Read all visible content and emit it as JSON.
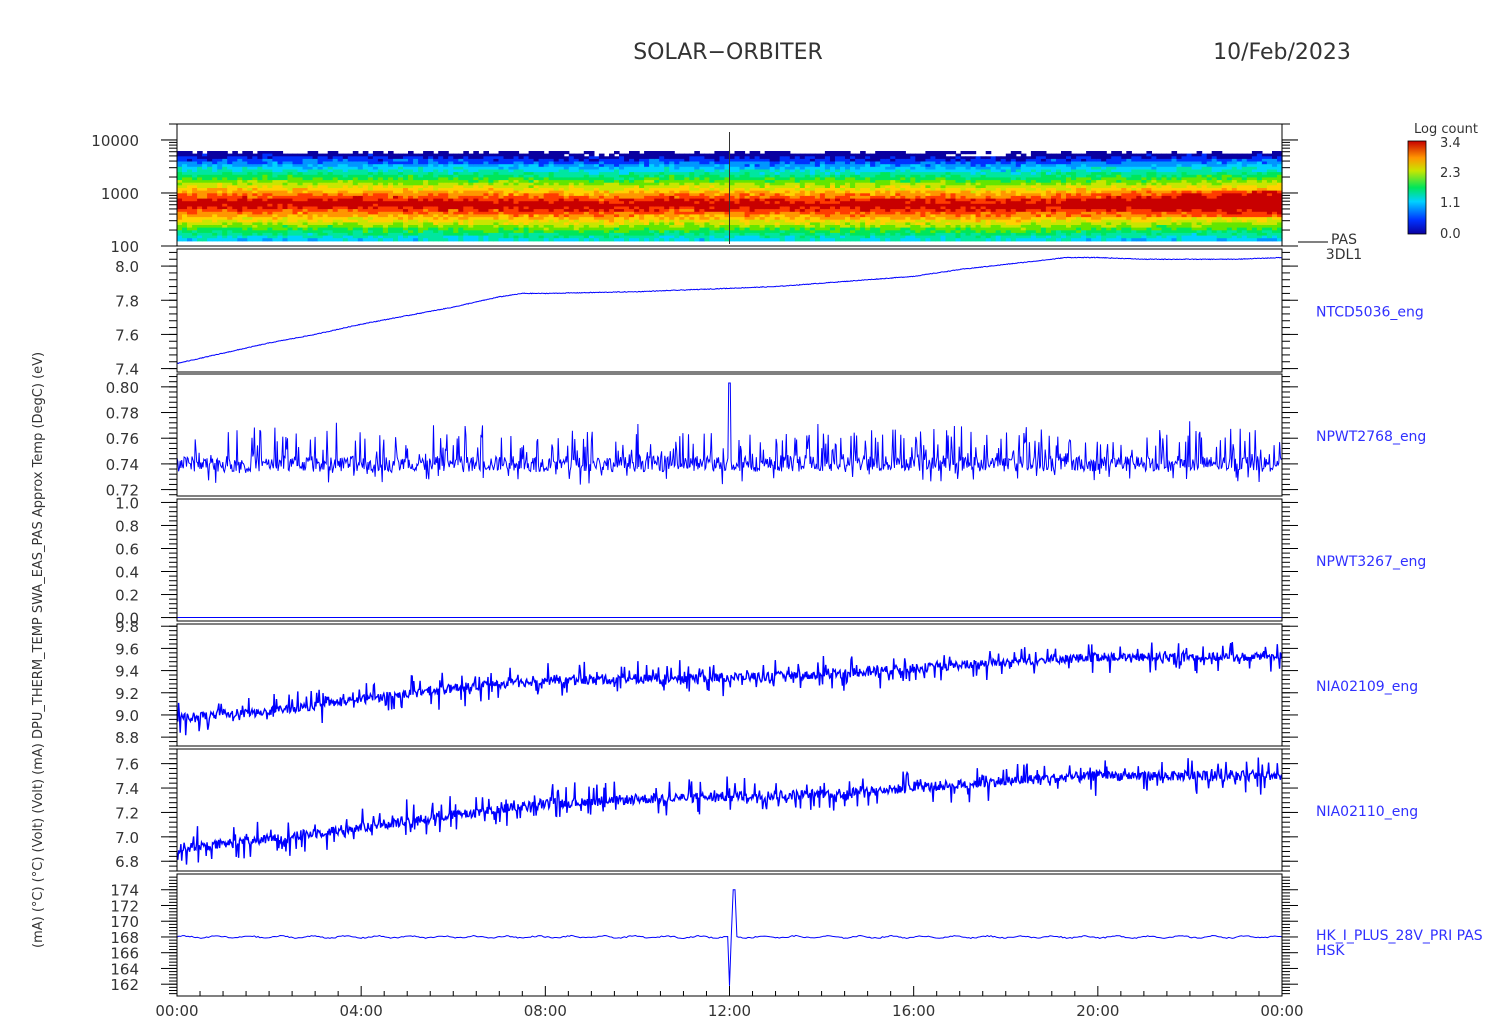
{
  "header": {
    "mission": "SOLAR−ORBITER",
    "date": "10/Feb/2023"
  },
  "colorbar": {
    "title": "Log count",
    "ticks": [
      "3.4",
      "2.3",
      "1.1",
      "0.0"
    ]
  },
  "left_axis_label_overlap": "(mA)  (°C)  (°C)  (Volt)  (Volt)  (mA)   DPU_THERM_TEMP  SWA_EAS_PAS  Approx  Temp (DegC)  (eV)",
  "x_axis": {
    "ticks": [
      "00:00",
      "04:00",
      "08:00",
      "12:00",
      "16:00",
      "20:00",
      "00:00"
    ]
  },
  "chart_data": [
    {
      "type": "heatmap",
      "name": "PAS 3DL1",
      "label_lines": [
        "PAS",
        "3DL1"
      ],
      "ylabel": "(eV)",
      "yscale": "log",
      "ylim": [
        100,
        20000
      ],
      "ytick_labels": [
        "10000",
        "1000",
        "100"
      ],
      "ytick_values": [
        10000,
        1000,
        100
      ],
      "color_range": [
        0.0,
        3.4
      ],
      "band_center_ev": [
        [
          0,
          620
        ],
        [
          2,
          640
        ],
        [
          4,
          630
        ],
        [
          6,
          610
        ],
        [
          8,
          590
        ],
        [
          9.5,
          560
        ],
        [
          10.5,
          620
        ],
        [
          12,
          600
        ],
        [
          14,
          590
        ],
        [
          16,
          600
        ],
        [
          17,
          580
        ],
        [
          18,
          560
        ],
        [
          19,
          600
        ],
        [
          20,
          620
        ],
        [
          22,
          640
        ],
        [
          24,
          650
        ]
      ]
    },
    {
      "type": "line",
      "series_label": "NTCD5036_eng",
      "ylim": [
        7.38,
        8.1
      ],
      "ytick_labels": [
        "8.0",
        "7.8",
        "7.6",
        "7.4"
      ],
      "ytick_values": [
        8.0,
        7.8,
        7.6,
        7.4
      ],
      "x": [
        0,
        1,
        2,
        3,
        4,
        5,
        6,
        7,
        7.5,
        8,
        9,
        10,
        11,
        12,
        13,
        14,
        15,
        16,
        17,
        18,
        19,
        19.3,
        20,
        21,
        22,
        23,
        24
      ],
      "y": [
        7.43,
        7.49,
        7.55,
        7.6,
        7.66,
        7.71,
        7.76,
        7.82,
        7.84,
        7.84,
        7.845,
        7.85,
        7.86,
        7.87,
        7.88,
        7.9,
        7.92,
        7.94,
        7.98,
        8.01,
        8.04,
        8.05,
        8.05,
        8.04,
        8.04,
        8.04,
        8.05
      ]
    },
    {
      "type": "line",
      "series_label": "NPWT2768_eng",
      "ylim": [
        0.715,
        0.81
      ],
      "ytick_labels": [
        "0.80",
        "0.78",
        "0.76",
        "0.74",
        "0.72"
      ],
      "ytick_values": [
        0.8,
        0.78,
        0.76,
        0.74,
        0.72
      ],
      "baseline": 0.74,
      "spike": {
        "x": 12.0,
        "y": 0.803
      }
    },
    {
      "type": "line",
      "series_label": "NPWT3267_eng",
      "ylim": [
        -0.03,
        1.03
      ],
      "ytick_labels": [
        "1.0",
        "0.8",
        "0.6",
        "0.4",
        "0.2",
        "0.0"
      ],
      "ytick_values": [
        1.0,
        0.8,
        0.6,
        0.4,
        0.2,
        0.0
      ],
      "x": [
        0,
        24
      ],
      "y": [
        0.0,
        0.0
      ]
    },
    {
      "type": "line",
      "series_label": "NIA02109_eng",
      "ylim": [
        8.72,
        9.82
      ],
      "ytick_labels": [
        "9.8",
        "9.6",
        "9.4",
        "9.2",
        "9.0",
        "8.8"
      ],
      "ytick_values": [
        9.8,
        9.6,
        9.4,
        9.2,
        9.0,
        8.8
      ],
      "x": [
        0,
        2,
        4,
        6,
        8,
        10,
        12,
        14,
        16,
        18,
        20,
        22,
        24
      ],
      "y": [
        8.97,
        9.03,
        9.14,
        9.24,
        9.31,
        9.32,
        9.34,
        9.36,
        9.42,
        9.48,
        9.52,
        9.52,
        9.53
      ]
    },
    {
      "type": "line",
      "series_label": "NIA02110_eng",
      "ylim": [
        6.72,
        7.72
      ],
      "ytick_labels": [
        "7.6",
        "7.4",
        "7.2",
        "7.0",
        "6.8"
      ],
      "ytick_values": [
        7.6,
        7.4,
        7.2,
        7.0,
        6.8
      ],
      "x": [
        0,
        2,
        4,
        6,
        8,
        10,
        12,
        14,
        16,
        18,
        20,
        22,
        24
      ],
      "y": [
        6.9,
        6.98,
        7.08,
        7.18,
        7.27,
        7.31,
        7.33,
        7.35,
        7.4,
        7.46,
        7.5,
        7.5,
        7.5
      ]
    },
    {
      "type": "line",
      "series_label": "HK_I_PLUS_28V_PRI PAS",
      "label_lines": [
        "HK_I_PLUS_28V_PRI PAS",
        "HSK"
      ],
      "ylim": [
        160.5,
        176
      ],
      "ytick_labels": [
        "174",
        "172",
        "170",
        "168",
        "166",
        "164",
        "162"
      ],
      "ytick_values": [
        174,
        172,
        170,
        168,
        166,
        164,
        162
      ],
      "baseline": 168.0,
      "spike": {
        "x_low": 12.0,
        "y_low": 161.8,
        "x_high": 12.1,
        "y_high": 174.0
      }
    }
  ]
}
